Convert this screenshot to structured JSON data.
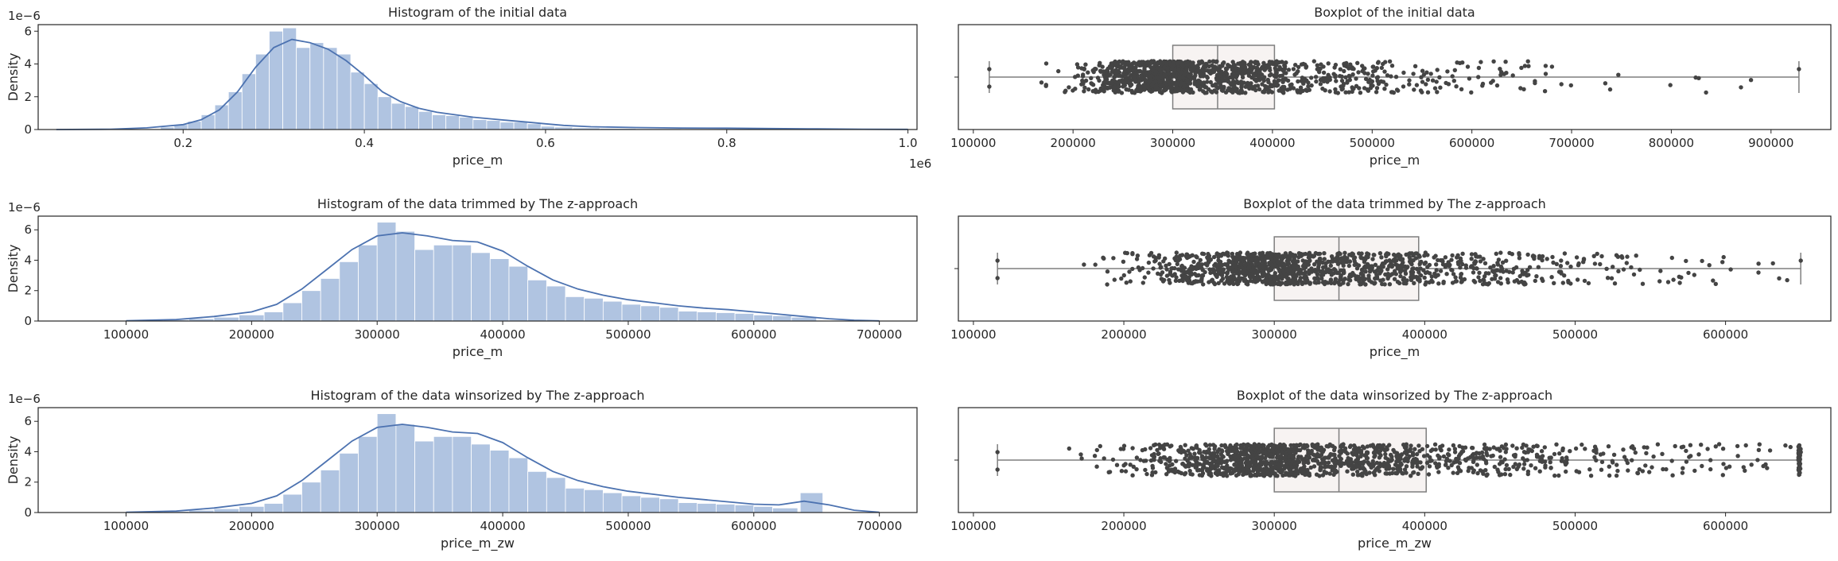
{
  "figure": {
    "palette": {
      "hist_bar": "#b0c4e1",
      "kde_line": "#4c72b0",
      "box_fill": "#f7f3f2",
      "box_edge": "#7f7f7f",
      "points": "#444444",
      "axis": "#262626"
    }
  },
  "chart_data": [
    {
      "type": "bar",
      "title": "Histogram of the initial data",
      "xlabel": "price_m",
      "ylabel": "Density",
      "offset_x_label": "1e6",
      "offset_y_label": "1e−6",
      "xlim": [
        0.04,
        1.01
      ],
      "ylim": [
        0,
        6.4
      ],
      "xticks": [
        0.2,
        0.4,
        0.6,
        0.8,
        1.0
      ],
      "xtick_labels": [
        "0.2",
        "0.4",
        "0.6",
        "0.8",
        "1.0"
      ],
      "yticks": [
        0,
        2,
        4,
        6
      ],
      "bins": [
        [
          0.175,
          0.19,
          0.15
        ],
        [
          0.19,
          0.205,
          0.3
        ],
        [
          0.205,
          0.22,
          0.5
        ],
        [
          0.22,
          0.235,
          0.9
        ],
        [
          0.235,
          0.25,
          1.5
        ],
        [
          0.25,
          0.265,
          2.3
        ],
        [
          0.265,
          0.28,
          3.4
        ],
        [
          0.28,
          0.295,
          4.6
        ],
        [
          0.295,
          0.31,
          6.0
        ],
        [
          0.31,
          0.325,
          6.2
        ],
        [
          0.325,
          0.34,
          5.0
        ],
        [
          0.34,
          0.355,
          5.3
        ],
        [
          0.355,
          0.37,
          5.0
        ],
        [
          0.37,
          0.385,
          4.6
        ],
        [
          0.385,
          0.4,
          3.5
        ],
        [
          0.4,
          0.415,
          2.8
        ],
        [
          0.415,
          0.43,
          2.0
        ],
        [
          0.43,
          0.445,
          1.6
        ],
        [
          0.445,
          0.46,
          1.4
        ],
        [
          0.46,
          0.475,
          1.1
        ],
        [
          0.475,
          0.49,
          0.9
        ],
        [
          0.49,
          0.505,
          0.85
        ],
        [
          0.505,
          0.52,
          0.75
        ],
        [
          0.52,
          0.535,
          0.6
        ],
        [
          0.535,
          0.55,
          0.55
        ],
        [
          0.55,
          0.565,
          0.45
        ],
        [
          0.565,
          0.58,
          0.45
        ],
        [
          0.58,
          0.595,
          0.35
        ],
        [
          0.595,
          0.61,
          0.2
        ],
        [
          0.61,
          0.63,
          0.15
        ],
        [
          0.63,
          0.66,
          0.1
        ],
        [
          0.66,
          0.7,
          0.07
        ],
        [
          0.7,
          0.75,
          0.05
        ],
        [
          0.75,
          0.8,
          0.04
        ],
        [
          0.8,
          0.85,
          0.03
        ],
        [
          0.85,
          0.93,
          0.02
        ]
      ],
      "kde": {
        "x": [
          0.06,
          0.12,
          0.16,
          0.2,
          0.22,
          0.24,
          0.26,
          0.28,
          0.3,
          0.32,
          0.34,
          0.36,
          0.38,
          0.4,
          0.42,
          0.44,
          0.46,
          0.48,
          0.5,
          0.52,
          0.54,
          0.56,
          0.58,
          0.6,
          0.62,
          0.65,
          0.7,
          0.75,
          0.8,
          0.85,
          0.9,
          0.95,
          1.0
        ],
        "y": [
          0.0,
          0.02,
          0.1,
          0.3,
          0.6,
          1.2,
          2.3,
          3.8,
          5.0,
          5.5,
          5.3,
          4.9,
          4.2,
          3.3,
          2.3,
          1.7,
          1.3,
          1.05,
          0.9,
          0.75,
          0.65,
          0.55,
          0.45,
          0.35,
          0.25,
          0.17,
          0.12,
          0.09,
          0.08,
          0.06,
          0.04,
          0.02,
          0.01
        ]
      }
    },
    {
      "type": "box",
      "title": "Boxplot of the initial data",
      "xlabel": "price_m",
      "xlim": [
        85000,
        960000
      ],
      "xticks": [
        100000,
        200000,
        300000,
        400000,
        500000,
        600000,
        700000,
        800000,
        900000
      ],
      "xtick_labels": [
        "100000",
        "200000",
        "300000",
        "400000",
        "500000",
        "600000",
        "700000",
        "800000",
        "900000"
      ],
      "box": {
        "whisker_low": 116000,
        "q1": 300000,
        "median": 345000,
        "q3": 402000,
        "whisker_high": 928000
      },
      "points": {
        "count": 1300,
        "min": 116000,
        "max": 928000,
        "mode": 315000,
        "spread_low": 50000,
        "spread_high": 95000,
        "seed": 7
      }
    },
    {
      "type": "bar",
      "title": "Histogram of the data trimmed by The z-approach",
      "xlabel": "price_m",
      "ylabel": "Density",
      "offset_y_label": "1e−6",
      "xlim": [
        30000,
        730000
      ],
      "ylim": [
        0,
        6.9
      ],
      "xticks": [
        100000,
        200000,
        300000,
        400000,
        500000,
        600000,
        700000
      ],
      "xtick_labels": [
        "100000",
        "200000",
        "300000",
        "400000",
        "500000",
        "600000",
        "700000"
      ],
      "yticks": [
        0,
        2,
        4,
        6
      ],
      "bins": [
        [
          115000,
          130000,
          0.05
        ],
        [
          130000,
          150000,
          0.08
        ],
        [
          150000,
          170000,
          0.15
        ],
        [
          170000,
          190000,
          0.25
        ],
        [
          190000,
          210000,
          0.4
        ],
        [
          210000,
          225000,
          0.6
        ],
        [
          225000,
          240000,
          1.2
        ],
        [
          240000,
          255000,
          2.0
        ],
        [
          255000,
          270000,
          2.8
        ],
        [
          270000,
          285000,
          3.9
        ],
        [
          285000,
          300000,
          5.0
        ],
        [
          300000,
          315000,
          6.5
        ],
        [
          315000,
          330000,
          5.9
        ],
        [
          330000,
          345000,
          4.7
        ],
        [
          345000,
          360000,
          5.0
        ],
        [
          360000,
          375000,
          5.0
        ],
        [
          375000,
          390000,
          4.5
        ],
        [
          390000,
          405000,
          4.1
        ],
        [
          405000,
          420000,
          3.6
        ],
        [
          420000,
          435000,
          2.7
        ],
        [
          435000,
          450000,
          2.3
        ],
        [
          450000,
          465000,
          1.6
        ],
        [
          465000,
          480000,
          1.5
        ],
        [
          480000,
          495000,
          1.3
        ],
        [
          495000,
          510000,
          1.1
        ],
        [
          510000,
          525000,
          1.0
        ],
        [
          525000,
          540000,
          0.9
        ],
        [
          540000,
          555000,
          0.65
        ],
        [
          555000,
          570000,
          0.6
        ],
        [
          570000,
          585000,
          0.55
        ],
        [
          585000,
          600000,
          0.5
        ],
        [
          600000,
          615000,
          0.4
        ],
        [
          615000,
          630000,
          0.35
        ],
        [
          630000,
          650000,
          0.25
        ]
      ],
      "kde": {
        "x": [
          100000,
          140000,
          170000,
          200000,
          220000,
          240000,
          260000,
          280000,
          300000,
          320000,
          340000,
          360000,
          380000,
          400000,
          420000,
          440000,
          460000,
          480000,
          500000,
          520000,
          540000,
          560000,
          580000,
          600000,
          620000,
          640000,
          660000,
          680000,
          700000
        ],
        "y": [
          0.02,
          0.1,
          0.3,
          0.6,
          1.1,
          2.1,
          3.4,
          4.7,
          5.6,
          5.8,
          5.6,
          5.3,
          5.2,
          4.6,
          3.6,
          2.7,
          2.1,
          1.7,
          1.4,
          1.2,
          1.0,
          0.85,
          0.75,
          0.6,
          0.45,
          0.3,
          0.15,
          0.05,
          0.01
        ]
      }
    },
    {
      "type": "box",
      "title": "Boxplot of the data trimmed by The z-approach",
      "xlabel": "price_m",
      "xlim": [
        90000,
        670000
      ],
      "xticks": [
        100000,
        200000,
        300000,
        400000,
        500000,
        600000
      ],
      "xtick_labels": [
        "100000",
        "200000",
        "300000",
        "400000",
        "500000",
        "600000"
      ],
      "box": {
        "whisker_low": 116000,
        "q1": 300000,
        "median": 343000,
        "q3": 396000,
        "whisker_high": 650000
      },
      "points": {
        "count": 1300,
        "min": 116000,
        "max": 650000,
        "mode": 315000,
        "spread_low": 50000,
        "spread_high": 90000,
        "seed": 11
      }
    },
    {
      "type": "bar",
      "title": "Histogram of the data winsorized by The z-approach",
      "xlabel": "price_m_zw",
      "ylabel": "Density",
      "offset_y_label": "1e−6",
      "xlim": [
        30000,
        730000
      ],
      "ylim": [
        0,
        6.9
      ],
      "xticks": [
        100000,
        200000,
        300000,
        400000,
        500000,
        600000,
        700000
      ],
      "xtick_labels": [
        "100000",
        "200000",
        "300000",
        "400000",
        "500000",
        "600000",
        "700000"
      ],
      "yticks": [
        0,
        2,
        4,
        6
      ],
      "bins": [
        [
          115000,
          130000,
          0.05
        ],
        [
          130000,
          150000,
          0.08
        ],
        [
          150000,
          170000,
          0.15
        ],
        [
          170000,
          190000,
          0.25
        ],
        [
          190000,
          210000,
          0.4
        ],
        [
          210000,
          225000,
          0.6
        ],
        [
          225000,
          240000,
          1.2
        ],
        [
          240000,
          255000,
          2.0
        ],
        [
          255000,
          270000,
          2.8
        ],
        [
          270000,
          285000,
          3.9
        ],
        [
          285000,
          300000,
          5.0
        ],
        [
          300000,
          315000,
          6.5
        ],
        [
          315000,
          330000,
          5.8
        ],
        [
          330000,
          345000,
          4.7
        ],
        [
          345000,
          360000,
          5.0
        ],
        [
          360000,
          375000,
          5.0
        ],
        [
          375000,
          390000,
          4.5
        ],
        [
          390000,
          405000,
          4.1
        ],
        [
          405000,
          420000,
          3.6
        ],
        [
          420000,
          435000,
          2.7
        ],
        [
          435000,
          450000,
          2.3
        ],
        [
          450000,
          465000,
          1.6
        ],
        [
          465000,
          480000,
          1.5
        ],
        [
          480000,
          495000,
          1.3
        ],
        [
          495000,
          510000,
          1.1
        ],
        [
          510000,
          525000,
          1.0
        ],
        [
          525000,
          540000,
          0.9
        ],
        [
          540000,
          555000,
          0.65
        ],
        [
          555000,
          570000,
          0.6
        ],
        [
          570000,
          585000,
          0.55
        ],
        [
          585000,
          600000,
          0.5
        ],
        [
          600000,
          615000,
          0.4
        ],
        [
          615000,
          635000,
          0.3
        ],
        [
          637000,
          655000,
          1.3
        ]
      ],
      "kde": {
        "x": [
          100000,
          140000,
          170000,
          200000,
          220000,
          240000,
          260000,
          280000,
          300000,
          320000,
          340000,
          360000,
          380000,
          400000,
          420000,
          440000,
          460000,
          480000,
          500000,
          520000,
          540000,
          560000,
          580000,
          600000,
          620000,
          640000,
          660000,
          680000,
          700000
        ],
        "y": [
          0.02,
          0.1,
          0.3,
          0.6,
          1.1,
          2.1,
          3.4,
          4.7,
          5.6,
          5.8,
          5.6,
          5.3,
          5.2,
          4.6,
          3.6,
          2.7,
          2.1,
          1.7,
          1.4,
          1.2,
          1.0,
          0.85,
          0.7,
          0.55,
          0.5,
          0.75,
          0.5,
          0.15,
          0.02
        ]
      }
    },
    {
      "type": "box",
      "title": "Boxplot of the data winsorized by The z-approach",
      "xlabel": "price_m_zw",
      "xlim": [
        90000,
        670000
      ],
      "xticks": [
        100000,
        200000,
        300000,
        400000,
        500000,
        600000
      ],
      "xtick_labels": [
        "100000",
        "200000",
        "300000",
        "400000",
        "500000",
        "600000"
      ],
      "box": {
        "whisker_low": 116000,
        "q1": 300000,
        "median": 343000,
        "q3": 401000,
        "whisker_high": 650000
      },
      "points": {
        "count": 1350,
        "min": 116000,
        "max": 650000,
        "mode": 315000,
        "spread_low": 50000,
        "spread_high": 95000,
        "seed": 19,
        "clip_cluster": 650000
      }
    }
  ]
}
